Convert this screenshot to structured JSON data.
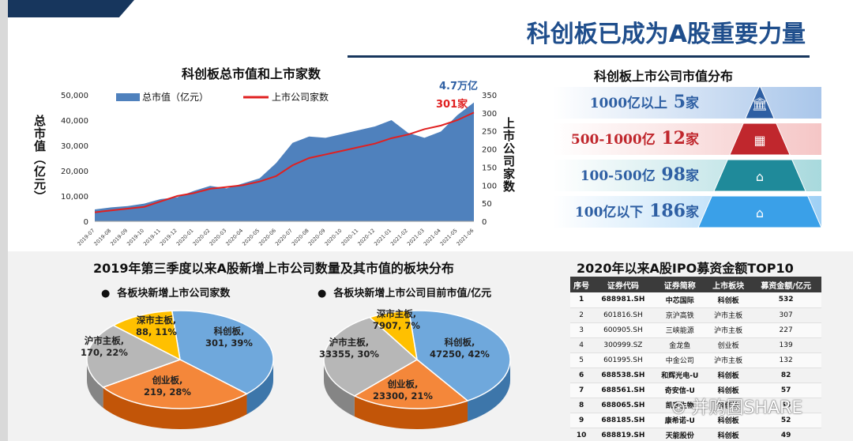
{
  "page_title": "科创板已成为A股重要力量",
  "watermark": "并购圈SHARE",
  "chart_data": [
    {
      "type": "area",
      "title": "科创板总市值和上市家数",
      "ylabel": "总市值（亿元）",
      "y2label": "上市公司家数",
      "ylim": [
        0,
        50000
      ],
      "y2lim": [
        0,
        350
      ],
      "y_ticks": [
        "0",
        "10,000",
        "20,000",
        "30,000",
        "40,000",
        "50,000"
      ],
      "y2_ticks": [
        "0",
        "50",
        "100",
        "150",
        "200",
        "250",
        "300",
        "350"
      ],
      "x_ticks": [
        "2019-07",
        "2019-08",
        "2019-09",
        "2019-10",
        "2019-11",
        "2019-12",
        "2020-01",
        "2020-02",
        "2020-03",
        "2020-04",
        "2020-05",
        "2020-06",
        "2020-07",
        "2020-08",
        "2020-09",
        "2020-10",
        "2020-11",
        "2020-12",
        "2021-01",
        "2021-02",
        "2021-03",
        "2021-04",
        "2021-05",
        "2021-06"
      ],
      "series": [
        {
          "name": "总市值（亿元）",
          "color": "#4f81bd",
          "values": [
            4700,
            5500,
            6000,
            7000,
            8800,
            9500,
            12000,
            14000,
            13000,
            15000,
            17000,
            23000,
            31000,
            33500,
            33000,
            34500,
            36000,
            37500,
            40000,
            35000,
            33000,
            35500,
            42000,
            47000
          ]
        },
        {
          "name": "上市公司家数",
          "color": "#e02020",
          "values": [
            25,
            30,
            35,
            40,
            55,
            70,
            78,
            90,
            95,
            100,
            110,
            125,
            155,
            175,
            185,
            195,
            205,
            215,
            230,
            240,
            255,
            265,
            280,
            301
          ]
        }
      ],
      "annotations": [
        "4.7万亿",
        "301家"
      ],
      "legend_position": "top"
    },
    {
      "type": "pie",
      "title": "各板块新增上市公司家数",
      "slices": [
        {
          "name": "科创板",
          "value": 301,
          "pct": "39%",
          "color": "#6fa8dc"
        },
        {
          "name": "创业板",
          "value": 219,
          "pct": "28%",
          "color": "#f4873a"
        },
        {
          "name": "沪市主板",
          "value": 170,
          "pct": "22%",
          "color": "#b7b7b7"
        },
        {
          "name": "深市主板",
          "value": 88,
          "pct": "11%",
          "color": "#ffc000"
        }
      ]
    },
    {
      "type": "pie",
      "title": "各板块新增上市公司目前市值/亿元",
      "slices": [
        {
          "name": "科创板",
          "value": 47250,
          "pct": "42%",
          "color": "#6fa8dc"
        },
        {
          "name": "创业板",
          "value": 23300,
          "pct": "21%",
          "color": "#f4873a"
        },
        {
          "name": "沪市主板",
          "value": 33355,
          "pct": "30%",
          "color": "#b7b7b7"
        },
        {
          "name": "深市主板",
          "value": 7907,
          "pct": "7%",
          "color": "#ffc000"
        }
      ]
    },
    {
      "type": "table",
      "title": "2020年以来A股IPO募资金额TOP10",
      "columns": [
        "序号",
        "证券代码",
        "证券简称",
        "上市板块",
        "募资金额/亿元"
      ],
      "rows": [
        [
          "1",
          "688981.SH",
          "中芯国际",
          "科创板",
          "532"
        ],
        [
          "2",
          "601816.SH",
          "京沪高铁",
          "沪市主板",
          "307"
        ],
        [
          "3",
          "600905.SH",
          "三峡能源",
          "沪市主板",
          "227"
        ],
        [
          "4",
          "300999.SZ",
          "金龙鱼",
          "创业板",
          "139"
        ],
        [
          "5",
          "601995.SH",
          "中金公司",
          "沪市主板",
          "132"
        ],
        [
          "6",
          "688538.SH",
          "和辉光电-U",
          "科创板",
          "82"
        ],
        [
          "7",
          "688561.SH",
          "奇安信-U",
          "科创板",
          "57"
        ],
        [
          "8",
          "688065.SH",
          "凯赛生物",
          "科创板",
          "55"
        ],
        [
          "9",
          "688185.SH",
          "康希诺-U",
          "科创板",
          "52"
        ],
        [
          "10",
          "688819.SH",
          "天能股份",
          "科创板",
          "49"
        ]
      ]
    }
  ],
  "distribution": {
    "title": "科创板上市公司市值分布",
    "tiers": [
      {
        "range": "1000亿以上",
        "count": "5",
        "unit": "家",
        "band_color": "#a9c6ea",
        "tri_color": "#2e5fa3",
        "icon": "bank-icon"
      },
      {
        "range": "500-1000亿",
        "count": "12",
        "unit": "家",
        "band_color": "#f5c6c6",
        "tri_color": "#c0272d",
        "icon": "shop-icon"
      },
      {
        "range": "100-500亿",
        "count": "98",
        "unit": "家",
        "band_color": "#a8d9dd",
        "tri_color": "#1f8a9a",
        "icon": "house-icon"
      },
      {
        "range": "100亿以下",
        "count": "186",
        "unit": "家",
        "band_color": "#9fd0f5",
        "tri_color": "#3aa0e8",
        "icon": "home-icon"
      }
    ]
  },
  "bottom_title": "2019年第三季度以来A股新增上市公司数量及其市值的板块分布"
}
